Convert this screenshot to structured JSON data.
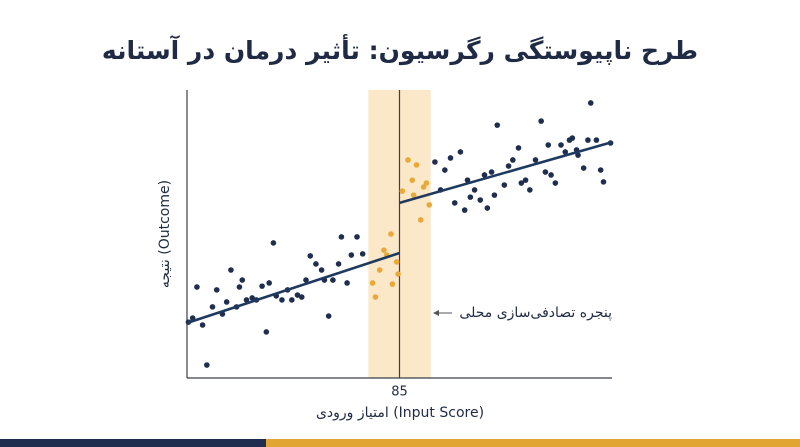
{
  "chart_data": {
    "type": "scatter",
    "title": "طرح ناپیوستگی رگرسیون: تأثیر درمان در آستانه",
    "x_label": "امتیاز ورودی (Input Score)",
    "y_label": "نتیجه (Outcome)",
    "annotation": "پنجره تصادفی‌سازی محلی",
    "xlim": [
      70,
      100
    ],
    "ylim": [
      0,
      100
    ],
    "xticks": [
      85
    ],
    "window": [
      82.8,
      87.2
    ],
    "window_color": "#fbe8c8",
    "series": [
      {
        "color": "#1f2d4e",
        "x": [
          70.1,
          70.4,
          70.7,
          71.1,
          71.4,
          71.8,
          72.1,
          72.5,
          72.8,
          73.1,
          73.5,
          73.7,
          73.9,
          74.2,
          74.6,
          74.9,
          75.3,
          75.6,
          75.8,
          76.1,
          76.3,
          76.7,
          77.1,
          77.4,
          77.8,
          78.1,
          78.4,
          78.7,
          79.1,
          79.5,
          79.7,
          80.0,
          80.3,
          80.7,
          80.9,
          81.3,
          81.6,
          82.0,
          82.4,
          87.5,
          87.9,
          88.2,
          88.6,
          88.9,
          89.3,
          89.6,
          89.8,
          90.0,
          90.3,
          90.7,
          91.0,
          91.2,
          91.5,
          91.7,
          91.9,
          92.4,
          92.7,
          93.0,
          93.4,
          93.6,
          93.9,
          94.2,
          94.6,
          95.0,
          95.3,
          95.5,
          95.7,
          96.0,
          96.4,
          96.7,
          97.0,
          97.2,
          97.5,
          97.6,
          98.0,
          98.3,
          98.5,
          98.9,
          99.2,
          99.4,
          99.9
        ],
        "values": [
          19.4,
          20.8,
          31.6,
          18.4,
          4.5,
          24.7,
          30.6,
          22.2,
          26.4,
          37.5,
          24.7,
          31.6,
          34.0,
          27.1,
          27.8,
          27.1,
          31.9,
          16.0,
          33.0,
          46.9,
          28.5,
          27.1,
          30.6,
          27.1,
          28.8,
          28.1,
          34.0,
          42.4,
          39.6,
          37.5,
          34.0,
          21.5,
          34.0,
          39.6,
          49.0,
          33.0,
          42.7,
          49.0,
          43.1,
          75.0,
          65.3,
          72.2,
          76.4,
          60.8,
          78.5,
          58.3,
          68.7,
          62.8,
          65.3,
          61.8,
          70.5,
          59.0,
          71.5,
          63.5,
          87.8,
          67.0,
          73.6,
          75.7,
          79.9,
          67.7,
          68.7,
          65.3,
          75.7,
          89.2,
          71.5,
          80.9,
          70.5,
          67.7,
          80.9,
          78.5,
          82.6,
          83.3,
          79.2,
          77.4,
          72.9,
          82.6,
          95.5,
          82.6,
          72.2,
          68.1,
          81.6
        ]
      },
      {
        "color": "#e9a93a",
        "x": [
          83.1,
          83.3,
          83.6,
          83.9,
          84.1,
          84.4,
          84.5,
          84.8,
          84.9,
          85.2,
          85.6,
          85.9,
          86.0,
          86.2,
          86.5,
          86.7,
          86.9,
          87.1
        ],
        "values": [
          33.0,
          28.1,
          37.5,
          44.4,
          42.7,
          50.0,
          32.6,
          40.3,
          36.1,
          64.9,
          75.7,
          68.7,
          63.5,
          74.0,
          54.9,
          66.3,
          67.7,
          60.1
        ]
      }
    ],
    "fits": [
      {
        "color": "#1f3a5f",
        "x": [
          70,
          85
        ],
        "values": [
          19.1,
          43.4
        ]
      },
      {
        "color": "#1f3a5f",
        "x": [
          85,
          100
        ],
        "values": [
          60.8,
          81.9
        ]
      }
    ]
  }
}
